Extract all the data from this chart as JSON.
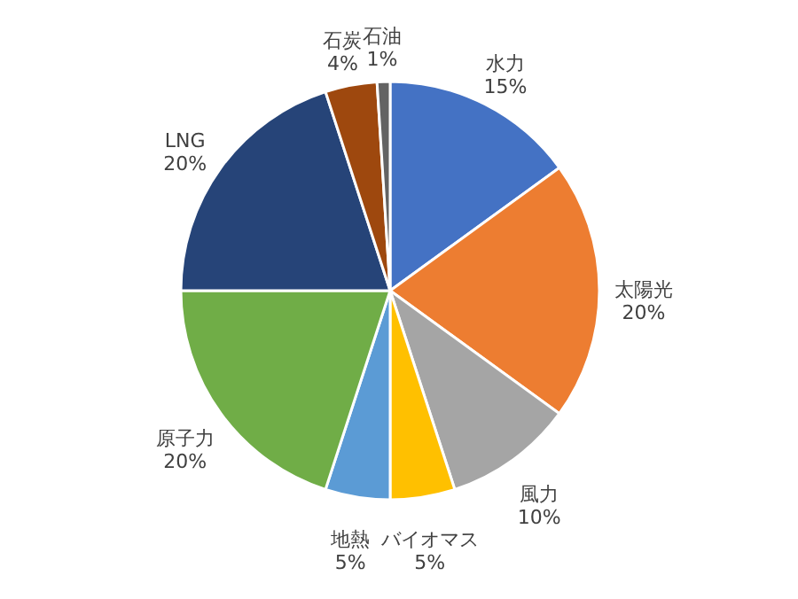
{
  "chart_data": {
    "type": "pie",
    "categories": [
      "水力",
      "太陽光",
      "風力",
      "バイオマス",
      "地熱",
      "原子力",
      "LNG",
      "石炭",
      "石油"
    ],
    "values": [
      15,
      20,
      10,
      5,
      5,
      20,
      20,
      4,
      1
    ],
    "value_labels": [
      "15%",
      "20%",
      "10%",
      "5%",
      "5%",
      "20%",
      "20%",
      "4%",
      "1%"
    ],
    "colors": [
      "#4472c4",
      "#ed7d31",
      "#a5a5a5",
      "#ffc000",
      "#5b9bd5",
      "#70ad47",
      "#264478",
      "#9e480e",
      "#636363"
    ],
    "legend": false
  }
}
